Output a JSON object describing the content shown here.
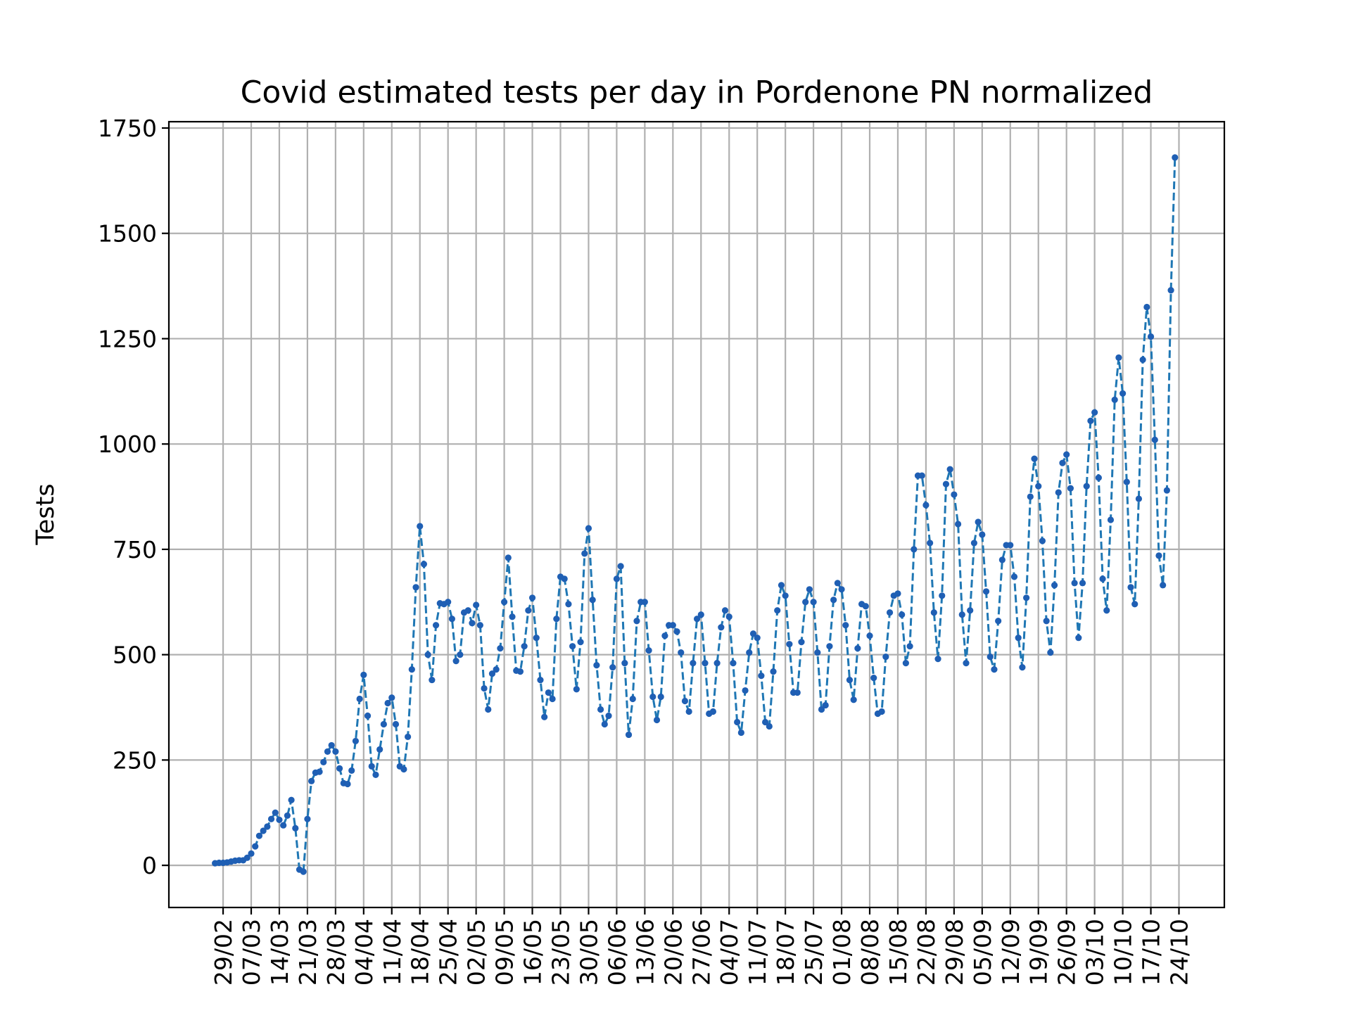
{
  "chart_data": {
    "type": "line",
    "title": "Covid estimated tests per day in Pordenone PN normalized",
    "xlabel": "",
    "ylabel": "Tests",
    "ylim": [
      -100,
      1765
    ],
    "yticks": [
      0,
      250,
      500,
      750,
      1000,
      1250,
      1500,
      1750
    ],
    "grid": true,
    "line_style": "dashed",
    "marker": "dot",
    "colors": {
      "line": "#1f77b4",
      "marker": "#1f5fb4"
    },
    "x_tick_labels": [
      "29/02",
      "07/03",
      "14/03",
      "21/03",
      "28/03",
      "04/04",
      "11/04",
      "18/04",
      "25/04",
      "02/05",
      "09/05",
      "16/05",
      "23/05",
      "30/05",
      "06/06",
      "13/06",
      "20/06",
      "27/06",
      "04/07",
      "11/07",
      "18/07",
      "25/07",
      "01/08",
      "08/08",
      "15/08",
      "22/08",
      "29/08",
      "05/09",
      "12/09",
      "19/09",
      "26/09",
      "03/10",
      "10/10",
      "17/10",
      "24/10"
    ],
    "x_tick_day_offsets": [
      0,
      7,
      14,
      21,
      28,
      35,
      42,
      49,
      56,
      63,
      70,
      77,
      84,
      91,
      98,
      105,
      112,
      119,
      126,
      133,
      140,
      147,
      154,
      161,
      168,
      175,
      182,
      189,
      196,
      203,
      210,
      217,
      224,
      231,
      238
    ],
    "x_start_offset": -2,
    "series": [
      {
        "name": "",
        "values": [
          5,
          6,
          6,
          7,
          9,
          11,
          12,
          12,
          18,
          28,
          45,
          70,
          82,
          92,
          110,
          125,
          108,
          95,
          118,
          155,
          88,
          -10,
          -15,
          110,
          200,
          220,
          222,
          245,
          270,
          285,
          270,
          230,
          195,
          193,
          225,
          295,
          395,
          452,
          355,
          235,
          215,
          275,
          335,
          385,
          398,
          335,
          235,
          228,
          305,
          465,
          660,
          805,
          715,
          500,
          440,
          570,
          622,
          620,
          625,
          585,
          485,
          500,
          600,
          605,
          575,
          618,
          570,
          420,
          370,
          455,
          465,
          515,
          625,
          730,
          590,
          462,
          460,
          520,
          605,
          635,
          540,
          440,
          352,
          410,
          395,
          585,
          685,
          680,
          620,
          520,
          418,
          530,
          740,
          800,
          630,
          475,
          370,
          335,
          355,
          470,
          680,
          710,
          480,
          310,
          395,
          580,
          625,
          625,
          510,
          400,
          345,
          400,
          545,
          570,
          570,
          555,
          505,
          390,
          365,
          480,
          585,
          595,
          480,
          360,
          365,
          480,
          565,
          605,
          590,
          480,
          340,
          315,
          415,
          505,
          550,
          540,
          450,
          340,
          330,
          460,
          605,
          665,
          640,
          525,
          410,
          410,
          530,
          625,
          655,
          625,
          505,
          370,
          380,
          520,
          630,
          670,
          655,
          570,
          440,
          393,
          515,
          620,
          615,
          545,
          445,
          360,
          365,
          495,
          600,
          640,
          645,
          595,
          480,
          520,
          750,
          925,
          925,
          855,
          765,
          600,
          490,
          640,
          905,
          940,
          880,
          810,
          595,
          480,
          605,
          765,
          815,
          785,
          650,
          495,
          465,
          580,
          725,
          760,
          760,
          685,
          540,
          470,
          635,
          875,
          965,
          900,
          770,
          580,
          505,
          665,
          885,
          955,
          975,
          895,
          670,
          540,
          670,
          900,
          1055,
          1075,
          920,
          680,
          605,
          820,
          1105,
          1205,
          1120,
          910,
          660,
          620,
          870,
          1200,
          1325,
          1255,
          1010,
          735,
          665,
          890,
          1365,
          1680
        ]
      }
    ]
  }
}
